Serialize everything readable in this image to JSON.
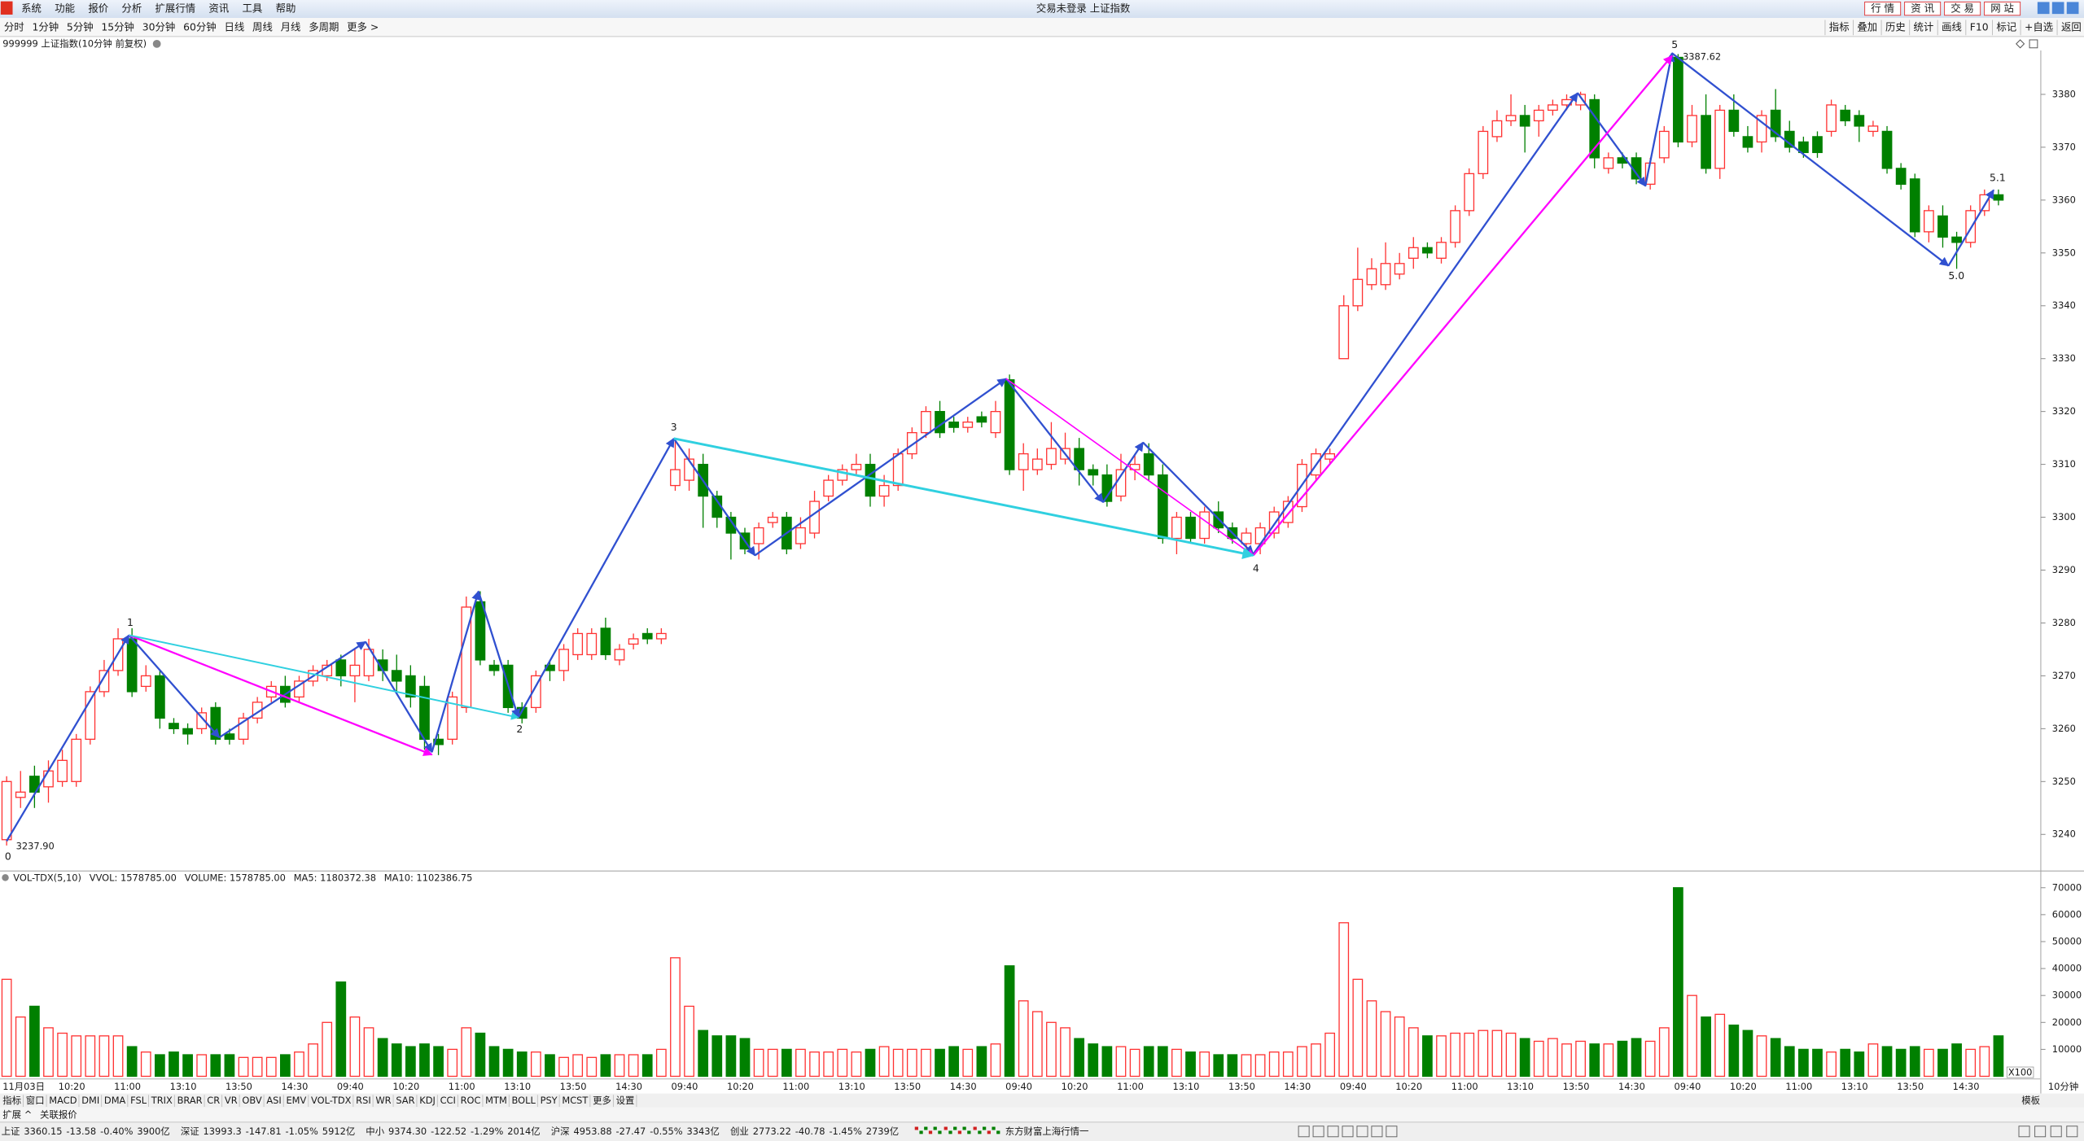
{
  "menu": [
    "系统",
    "功能",
    "报价",
    "分析",
    "扩展行情",
    "资讯",
    "工具",
    "帮助"
  ],
  "window_title": "交易未登录 上证指数",
  "quick_buttons": [
    "行 情",
    "资 讯",
    "交 易",
    "网 站"
  ],
  "periods": [
    "分时",
    "1分钟",
    "5分钟",
    "15分钟",
    "30分钟",
    "60分钟",
    "日线",
    "周线",
    "月线",
    "多周期",
    "更多 >"
  ],
  "tools": [
    "指标",
    "叠加",
    "历史",
    "统计",
    "画线",
    "F10",
    "标记",
    "+自选",
    "返回"
  ],
  "symbol_title": "999999 上证指数(10分钟 前复权)",
  "chart_data": [
    {
      "type": "candlestick",
      "up_color": "#ff3232",
      "down_color": "#008000",
      "open": [
        3239,
        3247,
        3251,
        3249,
        3250,
        3250,
        3258,
        3267,
        3271,
        3277,
        3268,
        3270,
        3261,
        3260,
        3260,
        3264,
        3259,
        3258,
        3262,
        3266,
        3268,
        3266,
        3269,
        3270,
        3273,
        3270,
        3270,
        3273,
        3271,
        3270,
        3268,
        3258,
        3258,
        3264,
        3284,
        3272,
        3272,
        3264,
        3264,
        3272,
        3271,
        3274,
        3274,
        3279,
        3273,
        3276,
        3278,
        3277,
        3306,
        3307,
        3310,
        3304,
        3300,
        3297,
        3295,
        3299,
        3300,
        3295,
        3297,
        3304,
        3307,
        3309,
        3310,
        3304,
        3306,
        3312,
        3316,
        3320,
        3318,
        3317,
        3319,
        3316,
        3326,
        3309,
        3309,
        3310,
        3311,
        3313,
        3309,
        3308,
        3304,
        3309,
        3312,
        3308,
        3296,
        3300,
        3296,
        3301,
        3298,
        3295,
        3295,
        3297,
        3299,
        3302,
        3308,
        3311,
        3330,
        3340,
        3344,
        3344,
        3346,
        3349,
        3351,
        3349,
        3352,
        3358,
        3365,
        3372,
        3375,
        3376,
        3375,
        3377,
        3378,
        3378,
        3379,
        3366,
        3368,
        3368,
        3363,
        3368,
        3387,
        3371,
        3376,
        3366,
        3377,
        3372,
        3371,
        3377,
        3373,
        3371,
        3372,
        3373,
        3377,
        3376,
        3373,
        3373,
        3366,
        3364,
        3354,
        3357,
        3353,
        3352,
        3358,
        3361
      ],
      "high": [
        3251,
        3252,
        3253,
        3254,
        3256,
        3259,
        3268,
        3273,
        3279,
        3279,
        3272,
        3271,
        3262,
        3261,
        3264,
        3265,
        3260,
        3263,
        3266,
        3269,
        3270,
        3270,
        3272,
        3273,
        3274,
        3275,
        3277,
        3275,
        3274,
        3272,
        3270,
        3259,
        3267,
        3285,
        3286,
        3273,
        3273,
        3265,
        3271,
        3273,
        3276,
        3279,
        3279,
        3281,
        3276,
        3278,
        3279,
        3279,
        3315,
        3313,
        3312,
        3305,
        3301,
        3298,
        3299,
        3301,
        3301,
        3300,
        3305,
        3308,
        3310,
        3312,
        3312,
        3308,
        3313,
        3317,
        3321,
        3322,
        3319,
        3319,
        3320,
        3322,
        3327,
        3314,
        3313,
        3318,
        3316,
        3315,
        3310,
        3310,
        3312,
        3312,
        3314,
        3310,
        3301,
        3301,
        3302,
        3303,
        3299,
        3298,
        3299,
        3302,
        3304,
        3311,
        3313,
        3313,
        3342,
        3351,
        3349,
        3352,
        3350,
        3353,
        3352,
        3353,
        3359,
        3366,
        3374,
        3377,
        3380,
        3378,
        3378,
        3379,
        3380,
        3380.5,
        3380,
        3369,
        3369,
        3369,
        3368,
        3374,
        3387.62,
        3378,
        3380,
        3378,
        3380,
        3374,
        3377,
        3381,
        3375,
        3372,
        3373,
        3379,
        3378,
        3377,
        3375,
        3374,
        3367,
        3365,
        3359,
        3359,
        3354,
        3359,
        3362,
        3362
      ],
      "low": [
        3237.9,
        3245,
        3245,
        3246,
        3249,
        3249,
        3257,
        3266,
        3270,
        3266,
        3267,
        3260,
        3259,
        3257,
        3259,
        3257,
        3257,
        3257,
        3261,
        3265,
        3264,
        3265,
        3268,
        3269,
        3268,
        3265,
        3269,
        3269,
        3267,
        3264,
        3256,
        3255,
        3257,
        3263,
        3272,
        3270,
        3263,
        3261,
        3263,
        3269,
        3269,
        3273,
        3273,
        3273,
        3272,
        3275,
        3276,
        3276,
        3305,
        3305,
        3298,
        3298,
        3292,
        3293,
        3292,
        3298,
        3293,
        3294,
        3296,
        3303,
        3306,
        3308,
        3302,
        3302,
        3305,
        3311,
        3315,
        3315,
        3316,
        3316,
        3317,
        3315,
        3308,
        3305,
        3308,
        3309,
        3310,
        3306,
        3306,
        3302,
        3303,
        3307,
        3307,
        3295,
        3293,
        3295,
        3295,
        3297,
        3295,
        3294,
        3293,
        3296,
        3298,
        3301,
        3307,
        3310,
        3330,
        3339,
        3343,
        3343,
        3345,
        3347,
        3349,
        3348,
        3351,
        3357,
        3364,
        3371,
        3374,
        3369,
        3372,
        3376,
        3377,
        3377,
        3366,
        3365,
        3366,
        3363,
        3362,
        3367,
        3370,
        3370,
        3365,
        3364,
        3372,
        3369,
        3369,
        3371,
        3369,
        3368,
        3368,
        3372,
        3374,
        3371,
        3372,
        3365,
        3362,
        3353,
        3352,
        3351,
        3347,
        3351,
        3357,
        3359
      ],
      "close": [
        3250,
        3248,
        3248,
        3252,
        3254,
        3258,
        3267,
        3271,
        3277,
        3267,
        3270,
        3262,
        3260,
        3259,
        3263,
        3258,
        3258,
        3262,
        3265,
        3268,
        3265,
        3269,
        3271,
        3272,
        3270,
        3272,
        3275,
        3271,
        3269,
        3266,
        3258,
        3257,
        3266,
        3283,
        3273,
        3271,
        3264,
        3262,
        3270,
        3271,
        3275,
        3278,
        3278,
        3274,
        3275,
        3277,
        3277,
        3278,
        3309,
        3311,
        3304,
        3300,
        3297,
        3294,
        3298,
        3300,
        3294,
        3298,
        3303,
        3307,
        3309,
        3310,
        3304,
        3306,
        3312,
        3316,
        3320,
        3316,
        3317,
        3318,
        3318,
        3320,
        3309,
        3312,
        3311,
        3313,
        3313,
        3309,
        3308,
        3303,
        3309,
        3310,
        3308,
        3296,
        3300,
        3296,
        3301,
        3298,
        3296,
        3297,
        3298,
        3301,
        3303,
        3310,
        3312,
        3312,
        3340,
        3345,
        3347,
        3348,
        3348,
        3351,
        3350,
        3352,
        3358,
        3365,
        3373,
        3375,
        3376,
        3374,
        3377,
        3378,
        3379,
        3380,
        3368,
        3368,
        3367,
        3364,
        3367,
        3373,
        3371,
        3376,
        3366,
        3377,
        3373,
        3370,
        3376,
        3372,
        3370,
        3369,
        3369,
        3378,
        3375,
        3374,
        3374,
        3366,
        3363,
        3354,
        3358,
        3353,
        3352,
        3358,
        3361,
        3360
      ],
      "ylim": [
        3233.2,
        3388.3
      ],
      "yticks": [
        3240,
        3250,
        3260,
        3270,
        3280,
        3290,
        3300,
        3310,
        3320,
        3330,
        3340,
        3350,
        3360,
        3370,
        3380
      ],
      "annotations": [
        "0",
        "3237.90",
        "1",
        "2",
        "3",
        "4",
        "5",
        "3387.62",
        "5.0",
        "5.1"
      ]
    },
    {
      "type": "bar",
      "legend": [
        "VOL-TDX(5,10)",
        "VVOL: 1578785.00",
        "VOLUME: 1578785.00",
        "MA5: 1180372.38",
        "MA10: 1102386.75"
      ],
      "legend_colors": [
        "#1a1a1a",
        "#1a1a80",
        "#ff00ff",
        "#ff00ff",
        "#808080"
      ],
      "categories": [
        "11月03日",
        null,
        null,
        null,
        "10:20",
        null,
        null,
        null,
        "11:00",
        null,
        null,
        null,
        "13:10",
        null,
        null,
        null,
        "13:50",
        null,
        null,
        null,
        "14:30",
        null,
        null,
        null,
        "09:40",
        null,
        null,
        null,
        "10:20",
        null,
        null,
        null,
        "11:00",
        null,
        null,
        null,
        "13:10",
        null,
        null,
        null,
        "13:50",
        null,
        null,
        null,
        "14:30",
        null,
        null,
        null,
        "09:40",
        null,
        null,
        null,
        "10:20",
        null,
        null,
        null,
        "11:00",
        null,
        null,
        null,
        "13:10",
        null,
        null,
        null,
        "13:50",
        null,
        null,
        null,
        "14:30",
        null,
        null,
        null,
        "09:40",
        null,
        null,
        null,
        "10:20",
        null,
        null,
        null,
        "11:00",
        null,
        null,
        null,
        "13:10",
        null,
        null,
        null,
        "13:50",
        null,
        null,
        null,
        "14:30",
        null,
        null,
        null,
        "09:40",
        null,
        null,
        null,
        "10:20",
        null,
        null,
        null,
        "11:00",
        null,
        null,
        null,
        "13:10",
        null,
        null,
        null,
        "13:50",
        null,
        null,
        null,
        "14:30",
        null,
        null,
        null,
        "09:40",
        null,
        null,
        null,
        "10:20",
        null,
        null,
        null,
        "11:00",
        null,
        null,
        null,
        "13:10",
        null,
        null,
        null,
        "13:50",
        null,
        null,
        null,
        "14:30",
        null,
        null,
        null
      ],
      "values": [
        36000,
        22000,
        26000,
        18000,
        16000,
        15000,
        15000,
        15000,
        15000,
        11000,
        9000,
        8000,
        9000,
        8000,
        8000,
        8000,
        8000,
        7000,
        7000,
        7000,
        8000,
        9000,
        12000,
        20000,
        35000,
        22000,
        18000,
        14000,
        12000,
        11000,
        12000,
        11000,
        10000,
        18000,
        16000,
        11000,
        10000,
        9000,
        9000,
        8000,
        7000,
        8000,
        7000,
        8000,
        8000,
        8000,
        8000,
        10000,
        44000,
        26000,
        17000,
        15000,
        15000,
        14000,
        10000,
        10000,
        10000,
        10000,
        9000,
        9000,
        10000,
        9000,
        10000,
        11000,
        10000,
        10000,
        10000,
        10000,
        11000,
        10000,
        11000,
        12000,
        41000,
        28000,
        24000,
        20000,
        18000,
        14000,
        12000,
        11000,
        11000,
        10000,
        11000,
        11000,
        10000,
        9000,
        9000,
        8000,
        8000,
        8000,
        8000,
        9000,
        9000,
        11000,
        12000,
        16000,
        57000,
        36000,
        28000,
        24000,
        22000,
        18000,
        15000,
        15000,
        16000,
        16000,
        17000,
        17000,
        16000,
        14000,
        13000,
        14000,
        12000,
        13000,
        12000,
        12000,
        13000,
        14000,
        13000,
        18000,
        70000,
        30000,
        22000,
        23000,
        19000,
        17000,
        15000,
        14000,
        11000,
        10000,
        10000,
        9000,
        10000,
        9000,
        12000,
        11000,
        10000,
        11000,
        10000,
        10000,
        12000,
        10000,
        11000,
        15000
      ],
      "ylim": [
        0,
        73000
      ],
      "yticks": [
        10000,
        20000,
        30000,
        40000,
        50000,
        60000,
        70000
      ],
      "unit_label": "X100",
      "period_label": "10分钟"
    }
  ],
  "indicator_tabs": [
    "指标",
    "窗口",
    "MACD",
    "DMI",
    "DMA",
    "FSL",
    "TRIX",
    "BRAR",
    "CR",
    "VR",
    "OBV",
    "ASI",
    "EMV",
    "VOL-TDX",
    "RSI",
    "WR",
    "SAR",
    "KDJ",
    "CCI",
    "ROC",
    "MTM",
    "BOLL",
    "PSY",
    "MCST",
    "更多",
    "设置"
  ],
  "active_tab": "VOL-TDX",
  "template_label": "模板",
  "sub_tabs": [
    "扩展 ^",
    "关联报价"
  ],
  "status": [
    {
      "name": "上证",
      "price": "3360.15",
      "change": "-13.58",
      "pct": "-0.40%",
      "amount": "3900亿"
    },
    {
      "name": "深证",
      "price": "13993.3",
      "change": "-147.81",
      "pct": "-1.05%",
      "amount": "5912亿"
    },
    {
      "name": "中小",
      "price": "9374.30",
      "change": "-122.52",
      "pct": "-1.29%",
      "amount": "2014亿"
    },
    {
      "name": "沪深",
      "price": "4953.88",
      "change": "-27.47",
      "pct": "-0.55%",
      "amount": "3343亿"
    },
    {
      "name": "创业",
      "price": "2773.22",
      "change": "-40.78",
      "pct": "-1.45%",
      "amount": "2739亿"
    }
  ],
  "feed_label": "东方财富上海行情一"
}
